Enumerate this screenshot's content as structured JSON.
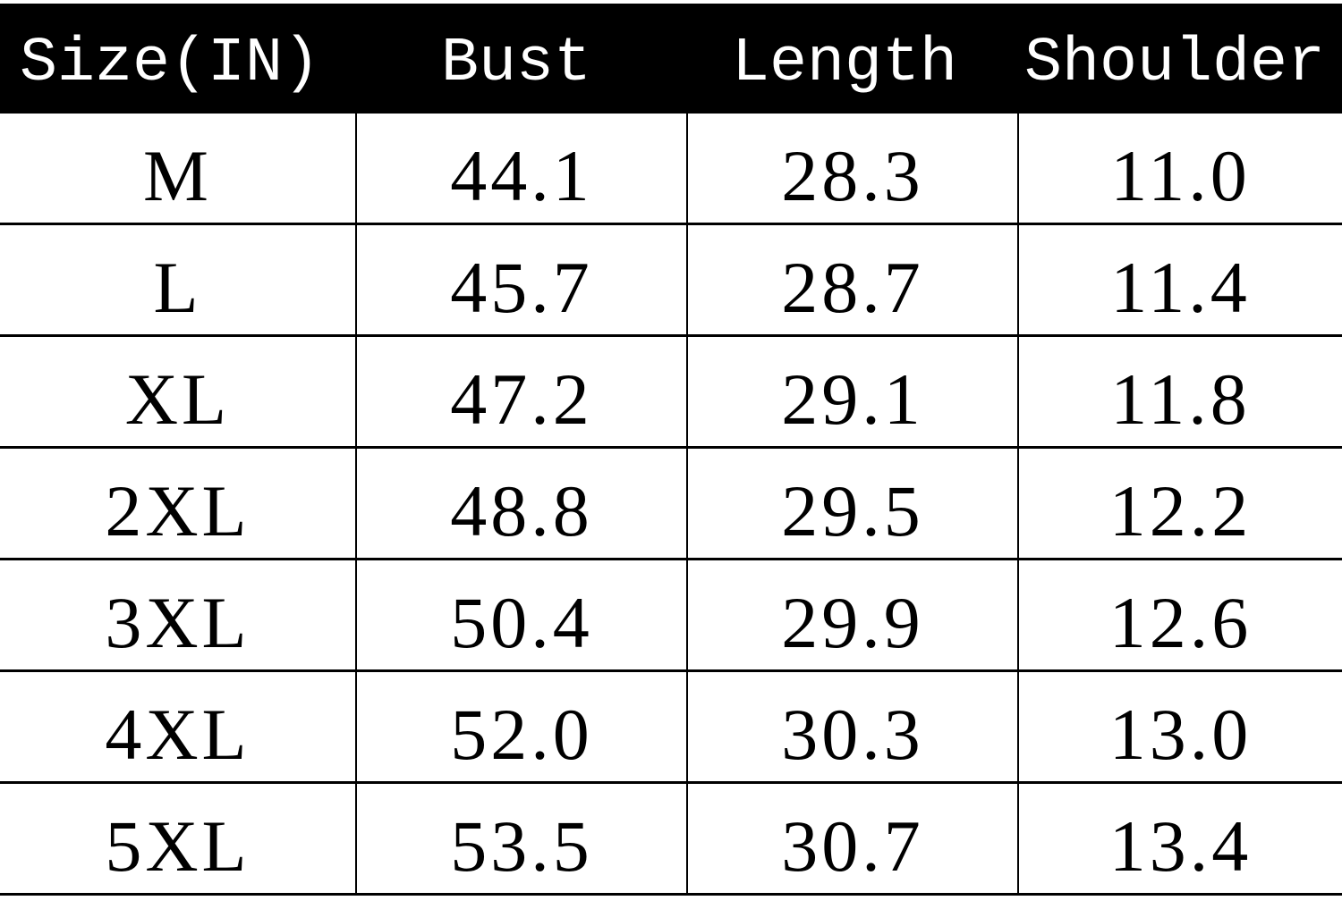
{
  "table": {
    "headers": [
      "Size(IN)",
      "Bust",
      "Length",
      "Shoulder"
    ],
    "rows": [
      [
        "M",
        "44.1",
        "28.3",
        "11.0"
      ],
      [
        "L",
        "45.7",
        "28.7",
        "11.4"
      ],
      [
        "XL",
        "47.2",
        "29.1",
        "11.8"
      ],
      [
        "2XL",
        "48.8",
        "29.5",
        "12.2"
      ],
      [
        "3XL",
        "50.4",
        "29.9",
        "12.6"
      ],
      [
        "4XL",
        "52.0",
        "30.3",
        "13.0"
      ],
      [
        "5XL",
        "53.5",
        "30.7",
        "13.4"
      ]
    ],
    "colors": {
      "header_bg": "#000000",
      "header_text": "#ffffff",
      "grid": "#000000"
    }
  }
}
